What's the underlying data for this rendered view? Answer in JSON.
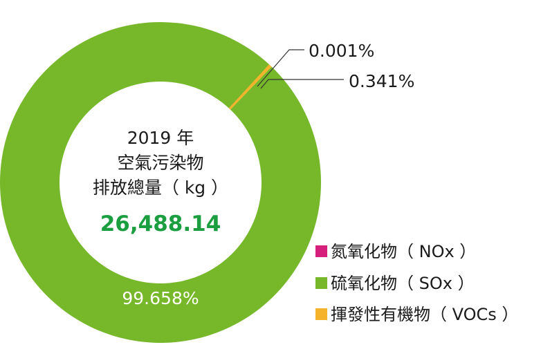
{
  "chart_data": {
    "type": "pie",
    "title_lines": [
      "2019 年",
      "空氣污染物",
      "排放總量（ kg ）"
    ],
    "total": "26,488.14",
    "series": [
      {
        "name": "氮氧化物（ NOx ）",
        "value": 0.001,
        "label": "0.001%",
        "color": "#d61f7c"
      },
      {
        "name": "揮發性有機物（ VOCs ）",
        "value": 0.341,
        "label": "0.341%",
        "color": "#f4b32a"
      },
      {
        "name": "硫氧化物（ SOx ）",
        "value": 99.658,
        "label": "99.658%",
        "color": "#76b82a"
      }
    ],
    "legend_order": [
      0,
      2,
      1
    ],
    "legend_position": "bottom-right"
  }
}
